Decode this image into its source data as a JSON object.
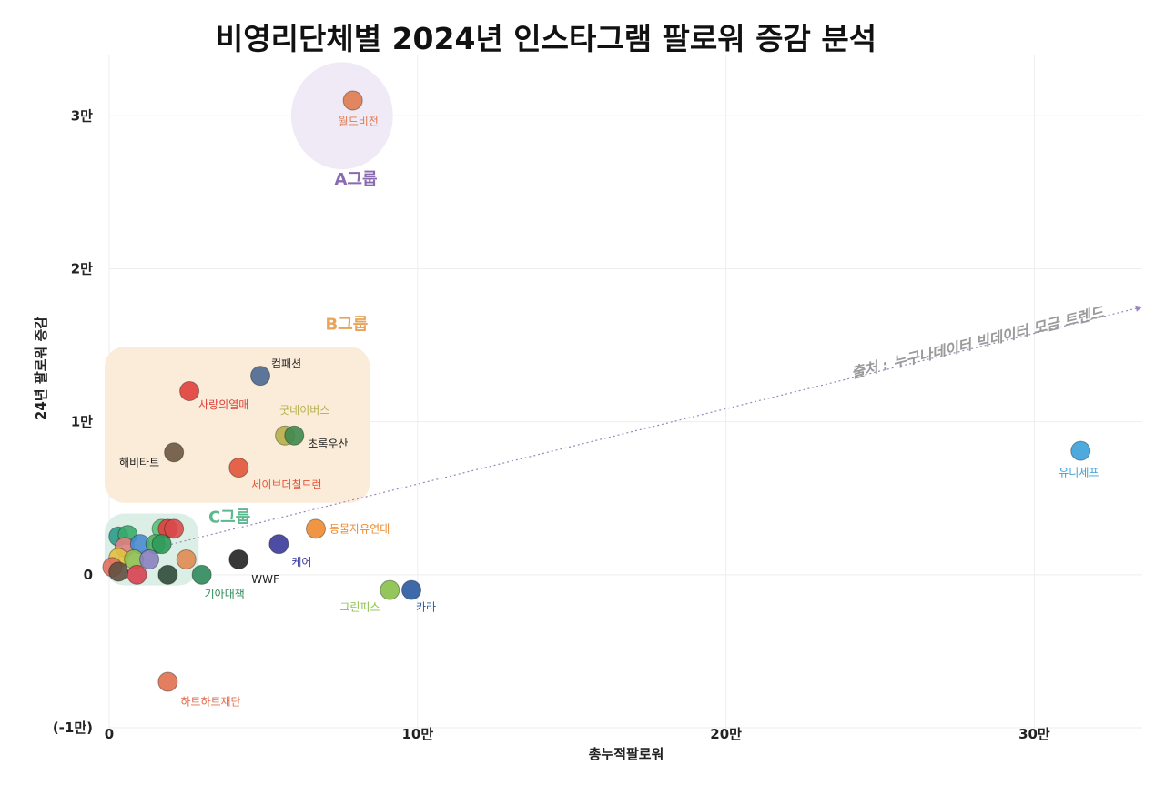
{
  "chart_data": {
    "type": "scatter",
    "title": "비영리단체별 2024년 인스타그램 팔로워 증감 분석",
    "xlabel": "총누적팔로워",
    "ylabel": "24년 팔로워 증감",
    "xlim": [
      0,
      335000
    ],
    "ylim": [
      -10000,
      34000
    ],
    "grid": true,
    "x_ticks": [
      {
        "value": 0,
        "label": "0"
      },
      {
        "value": 100000,
        "label": "10만"
      },
      {
        "value": 200000,
        "label": "20만"
      },
      {
        "value": 300000,
        "label": "30만"
      }
    ],
    "y_ticks": [
      {
        "value": -10000,
        "label": "(-1만)"
      },
      {
        "value": 0,
        "label": "0"
      },
      {
        "value": 10000,
        "label": "1만"
      },
      {
        "value": 20000,
        "label": "2만"
      },
      {
        "value": 30000,
        "label": "3만"
      }
    ],
    "groups": [
      {
        "name": "A그룹",
        "color": "#8a6ab0",
        "shape": "ellipse",
        "fill": "#efeaf5",
        "x_range": [
          59000,
          92000
        ],
        "y_range": [
          26500,
          33500
        ],
        "label_at": [
          80000,
          25500
        ]
      },
      {
        "name": "B그룹",
        "color": "#e8a45a",
        "shape": "rect",
        "fill": "#fbecd9",
        "x_range": [
          -1500,
          84500
        ],
        "y_range": [
          4700,
          14900
        ],
        "label_at": [
          77000,
          16000
        ]
      },
      {
        "name": "C그룹",
        "color": "#5cb88f",
        "shape": "rect",
        "fill": "#dcefe6",
        "x_range": [
          -1500,
          29000
        ],
        "y_range": [
          -700,
          4000
        ],
        "label_at": [
          39000,
          3400
        ]
      }
    ],
    "points": [
      {
        "label": "월드비전",
        "x": 79000,
        "y": 31000,
        "color": "#e07b4f"
      },
      {
        "label": "컴패션",
        "x": 49000,
        "y": 13000,
        "color": "#4a6890"
      },
      {
        "label": "사랑의열매",
        "x": 26000,
        "y": 12000,
        "color": "#e0403a"
      },
      {
        "label": "굿네이버스",
        "x": 57000,
        "y": 9100,
        "color": "#b5b04a"
      },
      {
        "label": "초록우산",
        "x": 60000,
        "y": 9100,
        "color": "#3f8a4e"
      },
      {
        "label": "해비타트",
        "x": 21000,
        "y": 8000,
        "color": "#6b5640"
      },
      {
        "label": "세이브더칠드런",
        "x": 42000,
        "y": 7000,
        "color": "#e0553a"
      },
      {
        "label": "유니세프",
        "x": 315000,
        "y": 8100,
        "color": "#3ba0d8"
      },
      {
        "label": "동물자유연대",
        "x": 67000,
        "y": 3000,
        "color": "#ee8a30"
      },
      {
        "label": "케어",
        "x": 55000,
        "y": 2000,
        "color": "#3a3a9a"
      },
      {
        "label": "WWF",
        "x": 42000,
        "y": 1000,
        "color": "#222222"
      },
      {
        "label": "기아대책",
        "x": 30000,
        "y": 0,
        "color": "#2e8a5a"
      },
      {
        "label": "그린피스",
        "x": 91000,
        "y": -1000,
        "color": "#8ac04a"
      },
      {
        "label": "카라",
        "x": 98000,
        "y": -1000,
        "color": "#2a5aa0"
      },
      {
        "label": "하트하트재단",
        "x": 19000,
        "y": -7000,
        "color": "#e0704f"
      },
      {
        "label": "",
        "x": 3000,
        "y": 2500,
        "color": "#2e9a8a"
      },
      {
        "label": "",
        "x": 6000,
        "y": 2600,
        "color": "#3aaa6a"
      },
      {
        "label": "",
        "x": 17000,
        "y": 3000,
        "color": "#5ac078"
      },
      {
        "label": "",
        "x": 19000,
        "y": 3000,
        "color": "#e04040"
      },
      {
        "label": "",
        "x": 21000,
        "y": 3000,
        "color": "#d84a4a"
      },
      {
        "label": "",
        "x": 5000,
        "y": 1800,
        "color": "#e08080"
      },
      {
        "label": "",
        "x": 10000,
        "y": 2000,
        "color": "#4a8ad0"
      },
      {
        "label": "",
        "x": 15000,
        "y": 2000,
        "color": "#4ab060"
      },
      {
        "label": "",
        "x": 17000,
        "y": 2000,
        "color": "#2e9a5a"
      },
      {
        "label": "",
        "x": 3000,
        "y": 1100,
        "color": "#e0c040"
      },
      {
        "label": "",
        "x": 8000,
        "y": 1000,
        "color": "#90c050"
      },
      {
        "label": "",
        "x": 13000,
        "y": 1000,
        "color": "#8a80c0"
      },
      {
        "label": "",
        "x": 25000,
        "y": 1000,
        "color": "#e08a50"
      },
      {
        "label": "",
        "x": 1000,
        "y": 500,
        "color": "#e07060"
      },
      {
        "label": "",
        "x": 3000,
        "y": 200,
        "color": "#605040"
      },
      {
        "label": "",
        "x": 9000,
        "y": 0,
        "color": "#d84050"
      },
      {
        "label": "",
        "x": 19000,
        "y": 0,
        "color": "#304a3a"
      }
    ],
    "trendline": {
      "from": [
        0,
        1000
      ],
      "to": [
        335000,
        17500
      ],
      "color": "#9a86bb",
      "style": "dotted"
    },
    "annotation": "출처 : 누구나데이터 빅데이터 모금 트렌드"
  }
}
